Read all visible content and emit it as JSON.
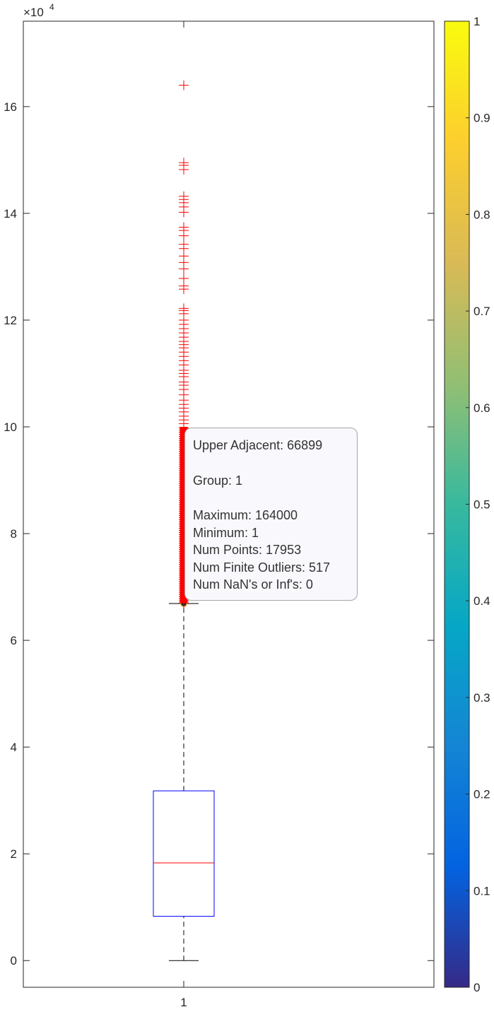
{
  "chart_data": [
    {
      "type": "box",
      "x_tick_labels": [
        "1"
      ],
      "y_exponent_label": "×10",
      "y_exponent": "4",
      "y_ticks": [
        0,
        20000,
        40000,
        60000,
        80000,
        100000,
        120000,
        140000,
        160000
      ],
      "y_tick_labels": [
        "0",
        "2",
        "4",
        "6",
        "8",
        "10",
        "12",
        "14",
        "16"
      ],
      "ylim": [
        -5000,
        176000
      ],
      "box": {
        "group": "1",
        "lower_whisker": 1,
        "q1": 8300,
        "median": 18300,
        "q3": 31800,
        "upper_adjacent": 66899,
        "maximum": 164000,
        "num_points": 17953,
        "num_finite_outliers": 517,
        "box_color": "#0000ff",
        "median_color": "#ff0000",
        "outlier_color": "#ff0000",
        "whisker_color": "#000000"
      },
      "outliers_dense_range": [
        67000,
        100000
      ],
      "outliers_sparse": [
        164000,
        149500,
        149000,
        148200,
        143200,
        142600,
        142000,
        141200,
        140200,
        137400,
        136800,
        135800,
        134200,
        133400,
        132000,
        130800,
        129600,
        127800,
        126400,
        125800,
        122200,
        121800,
        121200,
        120000,
        119200,
        118400,
        117600,
        116800,
        116000,
        115400,
        114800,
        114000,
        113200,
        112400,
        111600,
        110600,
        110000,
        109400,
        108400,
        107800,
        107000,
        106000,
        105000,
        104200,
        103500,
        102800,
        102000,
        101300,
        100600
      ]
    },
    {
      "type": "colorbar",
      "ticks": [
        0,
        0.1,
        0.2,
        0.3,
        0.4,
        0.5,
        0.6,
        0.7,
        0.8,
        0.9,
        1
      ],
      "tick_labels": [
        "0",
        "0.1",
        "0.2",
        "0.3",
        "0.4",
        "0.5",
        "0.6",
        "0.7",
        "0.8",
        "0.9",
        "1"
      ],
      "colormap": "parula",
      "colormap_stops": [
        "#352a87",
        "#0363e1",
        "#1485d4",
        "#06a7c6",
        "#38b99e",
        "#92bf73",
        "#d9ba56",
        "#fcce2e",
        "#f9fb0e"
      ]
    }
  ],
  "tooltip": {
    "upper_adjacent": "Upper Adjacent: 66899",
    "group": "Group: 1",
    "maximum": "Maximum: 164000",
    "minimum": "Minimum: 1",
    "num_points": "Num Points: 17953",
    "num_finite_outliers": "Num Finite Outliers: 517",
    "num_nan_inf": "Num NaN's or Inf's: 0"
  }
}
